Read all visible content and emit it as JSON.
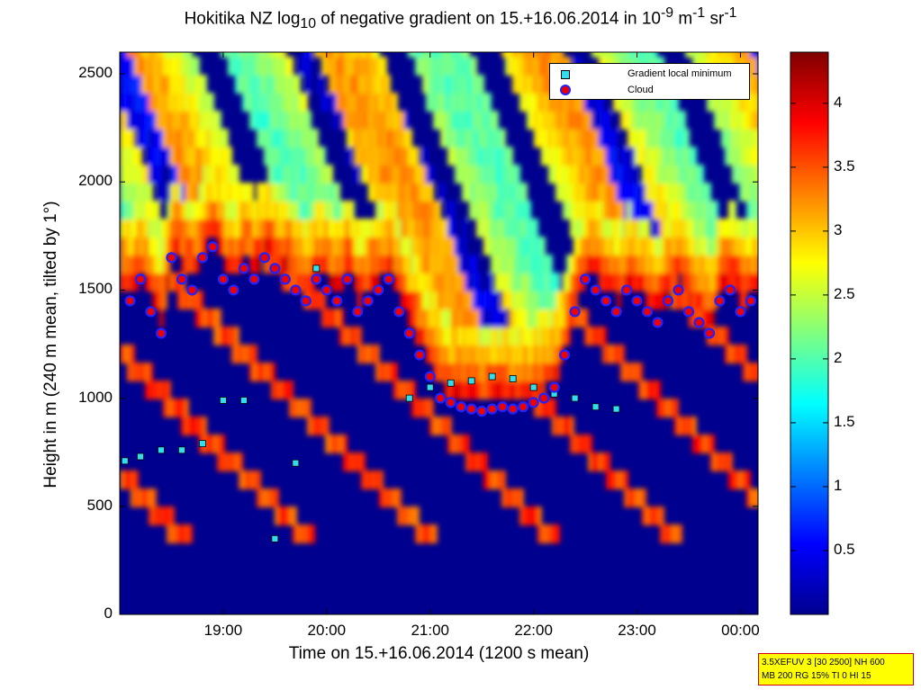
{
  "chart_data": {
    "type": "heatmap",
    "title_parts": {
      "main": "Hokitika NZ log",
      "sub": "10",
      "rest": " of negative gradient on 15.+16.06.2014 in 10",
      "exp1": "-9",
      "unit1": " m",
      "exp2": "-1",
      "unit2": " sr",
      "exp3": "-1"
    },
    "xlabel": "Time on 15.+16.06.2014 (1200 s mean)",
    "ylabel": "Height in m (240 m mean, tilted by 1°)",
    "x_ticks": [
      "19:00",
      "20:00",
      "21:00",
      "22:00",
      "23:00",
      "00:00"
    ],
    "x_tick_hours": [
      19,
      20,
      21,
      22,
      23,
      24
    ],
    "xlim_hours": [
      18.0,
      24.17
    ],
    "y_ticks": [
      0,
      500,
      1000,
      1500,
      2000,
      2500
    ],
    "ylim": [
      0,
      2600
    ],
    "colorbar": {
      "ticks": [
        0.5,
        1,
        1.5,
        2,
        2.5,
        3,
        3.5,
        4
      ],
      "range": [
        0,
        4.4
      ],
      "colormap": "jet"
    },
    "legend": {
      "placement": "top-right",
      "entries": [
        {
          "label": "Gradient local minimum",
          "color": "#33ddee",
          "marker": "square"
        },
        {
          "label": "Cloud",
          "color": "#ee0000",
          "marker": "circle-outlined-blue"
        }
      ]
    },
    "cloud_layer": [
      [
        18.1,
        1450
      ],
      [
        18.2,
        1550
      ],
      [
        18.3,
        1400
      ],
      [
        18.4,
        1300
      ],
      [
        18.5,
        1650
      ],
      [
        18.6,
        1550
      ],
      [
        18.7,
        1500
      ],
      [
        18.8,
        1650
      ],
      [
        18.9,
        1700
      ],
      [
        19.0,
        1550
      ],
      [
        19.1,
        1500
      ],
      [
        19.2,
        1600
      ],
      [
        19.3,
        1550
      ],
      [
        19.4,
        1650
      ],
      [
        19.5,
        1600
      ],
      [
        19.6,
        1550
      ],
      [
        19.7,
        1500
      ],
      [
        19.8,
        1450
      ],
      [
        19.9,
        1550
      ],
      [
        20.0,
        1500
      ],
      [
        20.1,
        1450
      ],
      [
        20.2,
        1550
      ],
      [
        20.3,
        1400
      ],
      [
        20.4,
        1450
      ],
      [
        20.5,
        1500
      ],
      [
        20.6,
        1550
      ],
      [
        20.7,
        1400
      ],
      [
        20.8,
        1300
      ],
      [
        20.9,
        1200
      ],
      [
        21.0,
        1100
      ],
      [
        21.1,
        1000
      ],
      [
        21.2,
        980
      ],
      [
        21.3,
        960
      ],
      [
        21.4,
        950
      ],
      [
        21.5,
        940
      ],
      [
        21.6,
        950
      ],
      [
        21.7,
        960
      ],
      [
        21.8,
        950
      ],
      [
        21.9,
        960
      ],
      [
        22.0,
        980
      ],
      [
        22.1,
        1000
      ],
      [
        22.2,
        1050
      ],
      [
        22.3,
        1200
      ],
      [
        22.4,
        1400
      ],
      [
        22.5,
        1550
      ],
      [
        22.6,
        1500
      ],
      [
        22.7,
        1450
      ],
      [
        22.8,
        1400
      ],
      [
        22.9,
        1500
      ],
      [
        23.0,
        1450
      ],
      [
        23.1,
        1400
      ],
      [
        23.2,
        1350
      ],
      [
        23.3,
        1450
      ],
      [
        23.4,
        1500
      ],
      [
        23.5,
        1400
      ],
      [
        23.6,
        1350
      ],
      [
        23.7,
        1300
      ],
      [
        23.8,
        1450
      ],
      [
        23.9,
        1500
      ],
      [
        24.0,
        1400
      ],
      [
        24.1,
        1450
      ]
    ],
    "gradient_minima_layer": [
      [
        18.05,
        710
      ],
      [
        18.2,
        730
      ],
      [
        18.4,
        760
      ],
      [
        18.6,
        760
      ],
      [
        18.8,
        790
      ],
      [
        19.0,
        990
      ],
      [
        19.2,
        990
      ],
      [
        19.5,
        350
      ],
      [
        19.7,
        700
      ],
      [
        19.9,
        1600
      ],
      [
        20.8,
        1000
      ],
      [
        21.0,
        1050
      ],
      [
        21.2,
        1070
      ],
      [
        21.4,
        1080
      ],
      [
        21.6,
        1100
      ],
      [
        21.8,
        1090
      ],
      [
        22.0,
        1050
      ],
      [
        22.2,
        1020
      ],
      [
        22.4,
        1000
      ],
      [
        22.6,
        960
      ],
      [
        22.8,
        950
      ]
    ]
  },
  "info_box": {
    "line1": "3.5XEFUV 3 [30 2500] NH 600",
    "line2": "MB 200 RG 15% TI 0 HI 15"
  }
}
